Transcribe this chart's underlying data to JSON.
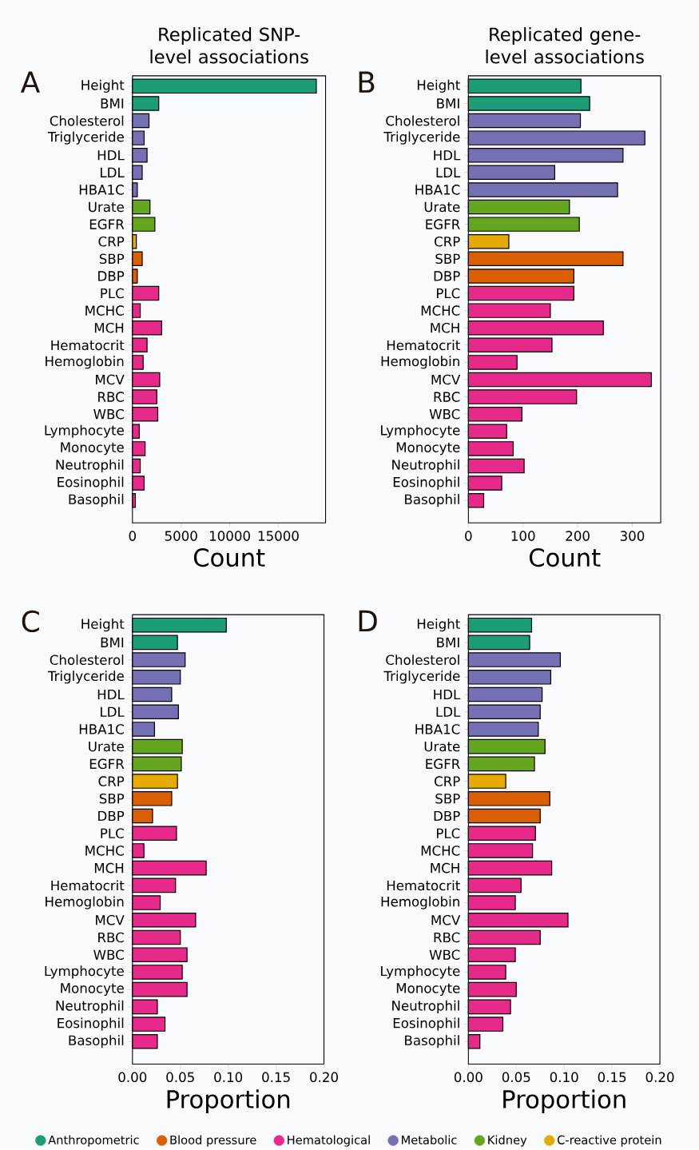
{
  "chart_data": [
    {
      "type": "bar",
      "orientation": "horizontal",
      "title": "Replicated SNP-level associations",
      "xlabel": "Count",
      "annotations": [
        "A"
      ],
      "categories": [
        "Height",
        "BMI",
        "Cholesterol",
        "Triglyceride",
        "HDL",
        "LDL",
        "HBA1C",
        "Urate",
        "EGFR",
        "CRP",
        "SBP",
        "DBP",
        "PLC",
        "MCHC",
        "MCH",
        "Hematocrit",
        "Hemoglobin",
        "MCV",
        "RBC",
        "WBC",
        "Lymphocyte",
        "Monocyte",
        "Neutrophil",
        "Eosinophil",
        "Basophil"
      ],
      "xlim": [
        0,
        19850
      ],
      "xticks": [
        0,
        5000,
        10000,
        15000
      ],
      "series": [
        {
          "color": "#1b9e77",
          "values": [
            18900,
            2700,
            null,
            null,
            null,
            null,
            null,
            null,
            null,
            null,
            null,
            null,
            null,
            null,
            null,
            null,
            null,
            null,
            null,
            null,
            null,
            null,
            null,
            null,
            null
          ]
        },
        {
          "color": "#d95f02",
          "values": [
            null,
            null,
            null,
            null,
            null,
            null,
            null,
            null,
            null,
            null,
            1000,
            500,
            null,
            null,
            null,
            null,
            null,
            null,
            null,
            null,
            null,
            null,
            null,
            null,
            null
          ]
        },
        {
          "color": "#e7298a",
          "values": [
            null,
            null,
            null,
            null,
            null,
            null,
            null,
            null,
            null,
            null,
            null,
            null,
            2700,
            800,
            3000,
            1500,
            1100,
            2800,
            2500,
            2600,
            700,
            1300,
            800,
            1200,
            300
          ]
        },
        {
          "color": "#7570b3",
          "values": [
            null,
            null,
            1700,
            1200,
            1500,
            1000,
            500,
            null,
            null,
            null,
            null,
            null,
            null,
            null,
            null,
            null,
            null,
            null,
            null,
            null,
            null,
            null,
            null,
            null,
            null
          ]
        },
        {
          "color": "#66a61e",
          "values": [
            null,
            null,
            null,
            null,
            null,
            null,
            null,
            1800,
            2300,
            null,
            null,
            null,
            null,
            null,
            null,
            null,
            null,
            null,
            null,
            null,
            null,
            null,
            null,
            null,
            null
          ]
        },
        {
          "color": "#e6ab02",
          "values": [
            null,
            null,
            null,
            null,
            null,
            null,
            null,
            null,
            null,
            400,
            null,
            null,
            null,
            null,
            null,
            null,
            null,
            null,
            null,
            null,
            null,
            null,
            null,
            null,
            null
          ]
        }
      ]
    },
    {
      "type": "bar",
      "orientation": "horizontal",
      "title": "Replicated gene-level associations",
      "xlabel": "Count",
      "annotations": [
        "B"
      ],
      "categories": [
        "Height",
        "BMI",
        "Cholesterol",
        "Triglyceride",
        "HDL",
        "LDL",
        "HBA1C",
        "Urate",
        "EGFR",
        "CRP",
        "SBP",
        "DBP",
        "PLC",
        "MCHC",
        "MCH",
        "Hematocrit",
        "Hemoglobin",
        "MCV",
        "RBC",
        "WBC",
        "Lymphocyte",
        "Monocyte",
        "Neutrophil",
        "Eosinophil",
        "Basophil"
      ],
      "xlim": [
        0,
        352
      ],
      "xticks": [
        0,
        100,
        200,
        300
      ],
      "series": [
        {
          "color": "#1b9e77",
          "values": [
            206,
            222,
            null,
            null,
            null,
            null,
            null,
            null,
            null,
            null,
            null,
            null,
            null,
            null,
            null,
            null,
            null,
            null,
            null,
            null,
            null,
            null,
            null,
            null,
            null
          ]
        },
        {
          "color": "#d95f02",
          "values": [
            null,
            null,
            null,
            null,
            null,
            null,
            null,
            null,
            null,
            null,
            283,
            193,
            null,
            null,
            null,
            null,
            null,
            null,
            null,
            null,
            null,
            null,
            null,
            null,
            null
          ]
        },
        {
          "color": "#e7298a",
          "values": [
            null,
            null,
            null,
            null,
            null,
            null,
            null,
            null,
            null,
            null,
            null,
            null,
            193,
            150,
            247,
            153,
            89,
            335,
            198,
            98,
            70,
            82,
            102,
            61,
            28
          ]
        },
        {
          "color": "#7570b3",
          "values": [
            null,
            null,
            205,
            323,
            283,
            158,
            273,
            null,
            null,
            null,
            null,
            null,
            null,
            null,
            null,
            null,
            null,
            null,
            null,
            null,
            null,
            null,
            null,
            null,
            null
          ]
        },
        {
          "color": "#66a61e",
          "values": [
            null,
            null,
            null,
            null,
            null,
            null,
            null,
            185,
            203,
            null,
            null,
            null,
            null,
            null,
            null,
            null,
            null,
            null,
            null,
            null,
            null,
            null,
            null,
            null,
            null
          ]
        },
        {
          "color": "#e6ab02",
          "values": [
            null,
            null,
            null,
            null,
            null,
            null,
            null,
            null,
            null,
            74,
            null,
            null,
            null,
            null,
            null,
            null,
            null,
            null,
            null,
            null,
            null,
            null,
            null,
            null,
            null
          ]
        }
      ]
    },
    {
      "type": "bar",
      "orientation": "horizontal",
      "xlabel": "Proportion",
      "annotations": [
        "C"
      ],
      "categories": [
        "Height",
        "BMI",
        "Cholesterol",
        "Triglyceride",
        "HDL",
        "LDL",
        "HBA1C",
        "Urate",
        "EGFR",
        "CRP",
        "SBP",
        "DBP",
        "PLC",
        "MCHC",
        "MCH",
        "Hematocrit",
        "Hemoglobin",
        "MCV",
        "RBC",
        "WBC",
        "Lymphocyte",
        "Monocyte",
        "Neutrophil",
        "Eosinophil",
        "Basophil"
      ],
      "xlim": [
        0,
        0.2
      ],
      "xticks": [
        {
          "value": 0,
          "label": "0.00"
        },
        {
          "value": 0.05,
          "label": "0.05"
        },
        {
          "value": 0.1,
          "label": "0.10"
        },
        {
          "value": 0.15,
          "label": "0.15"
        },
        {
          "value": 0.2,
          "label": "0.20"
        }
      ],
      "series": [
        {
          "color": "#1b9e77",
          "values": [
            0.098,
            0.047,
            null,
            null,
            null,
            null,
            null,
            null,
            null,
            null,
            null,
            null,
            null,
            null,
            null,
            null,
            null,
            null,
            null,
            null,
            null,
            null,
            null,
            null,
            null
          ]
        },
        {
          "color": "#d95f02",
          "values": [
            null,
            null,
            null,
            null,
            null,
            null,
            null,
            null,
            null,
            null,
            0.041,
            0.021,
            null,
            null,
            null,
            null,
            null,
            null,
            null,
            null,
            null,
            null,
            null,
            null,
            null
          ]
        },
        {
          "color": "#e7298a",
          "values": [
            null,
            null,
            null,
            null,
            null,
            null,
            null,
            null,
            null,
            null,
            null,
            null,
            0.046,
            0.012,
            0.077,
            0.045,
            0.029,
            0.066,
            0.05,
            0.057,
            0.052,
            0.057,
            0.026,
            0.034,
            0.026
          ]
        },
        {
          "color": "#7570b3",
          "values": [
            null,
            null,
            0.055,
            0.05,
            0.041,
            0.048,
            0.023,
            null,
            null,
            null,
            null,
            null,
            null,
            null,
            null,
            null,
            null,
            null,
            null,
            null,
            null,
            null,
            null,
            null,
            null
          ]
        },
        {
          "color": "#66a61e",
          "values": [
            null,
            null,
            null,
            null,
            null,
            null,
            null,
            0.052,
            0.051,
            null,
            null,
            null,
            null,
            null,
            null,
            null,
            null,
            null,
            null,
            null,
            null,
            null,
            null,
            null,
            null
          ]
        },
        {
          "color": "#e6ab02",
          "values": [
            null,
            null,
            null,
            null,
            null,
            null,
            null,
            null,
            null,
            0.047,
            null,
            null,
            null,
            null,
            null,
            null,
            null,
            null,
            null,
            null,
            null,
            null,
            null,
            null,
            null
          ]
        }
      ]
    },
    {
      "type": "bar",
      "orientation": "horizontal",
      "xlabel": "Proportion",
      "annotations": [
        "D"
      ],
      "legend": "bottom",
      "categories": [
        "Height",
        "BMI",
        "Cholesterol",
        "Triglyceride",
        "HDL",
        "LDL",
        "HBA1C",
        "Urate",
        "EGFR",
        "CRP",
        "SBP",
        "DBP",
        "PLC",
        "MCHC",
        "MCH",
        "Hematocrit",
        "Hemoglobin",
        "MCV",
        "RBC",
        "WBC",
        "Lymphocyte",
        "Monocyte",
        "Neutrophil",
        "Eosinophil",
        "Basophil"
      ],
      "xlim": [
        0,
        0.2
      ],
      "xticks": [
        {
          "value": 0,
          "label": "0.00"
        },
        {
          "value": 0.05,
          "label": "0.05"
        },
        {
          "value": 0.1,
          "label": "0.10"
        },
        {
          "value": 0.15,
          "label": "0.15"
        },
        {
          "value": 0.2,
          "label": "0.20"
        }
      ],
      "series": [
        {
          "name": "Anthropometric",
          "color": "#1b9e77",
          "values": [
            0.066,
            0.064,
            null,
            null,
            null,
            null,
            null,
            null,
            null,
            null,
            null,
            null,
            null,
            null,
            null,
            null,
            null,
            null,
            null,
            null,
            null,
            null,
            null,
            null,
            null
          ]
        },
        {
          "name": "Blood pressure",
          "color": "#d95f02",
          "values": [
            null,
            null,
            null,
            null,
            null,
            null,
            null,
            null,
            null,
            null,
            0.085,
            0.075,
            null,
            null,
            null,
            null,
            null,
            null,
            null,
            null,
            null,
            null,
            null,
            null,
            null
          ]
        },
        {
          "name": "Hematological",
          "color": "#e7298a",
          "values": [
            null,
            null,
            null,
            null,
            null,
            null,
            null,
            null,
            null,
            null,
            null,
            null,
            0.07,
            0.067,
            0.087,
            0.055,
            0.049,
            0.104,
            0.075,
            0.049,
            0.039,
            0.05,
            0.044,
            0.036,
            0.012
          ]
        },
        {
          "name": "Metabolic",
          "color": "#7570b3",
          "values": [
            null,
            null,
            0.096,
            0.086,
            0.077,
            0.075,
            0.073,
            null,
            null,
            null,
            null,
            null,
            null,
            null,
            null,
            null,
            null,
            null,
            null,
            null,
            null,
            null,
            null,
            null,
            null
          ]
        },
        {
          "name": "Kidney",
          "color": "#66a61e",
          "values": [
            null,
            null,
            null,
            null,
            null,
            null,
            null,
            0.08,
            0.069,
            null,
            null,
            null,
            null,
            null,
            null,
            null,
            null,
            null,
            null,
            null,
            null,
            null,
            null,
            null,
            null
          ]
        },
        {
          "name": "C-reactive protein",
          "color": "#e6ab02",
          "values": [
            null,
            null,
            null,
            null,
            null,
            null,
            null,
            null,
            null,
            0.039,
            null,
            null,
            null,
            null,
            null,
            null,
            null,
            null,
            null,
            null,
            null,
            null,
            null,
            null,
            null
          ]
        }
      ]
    }
  ]
}
